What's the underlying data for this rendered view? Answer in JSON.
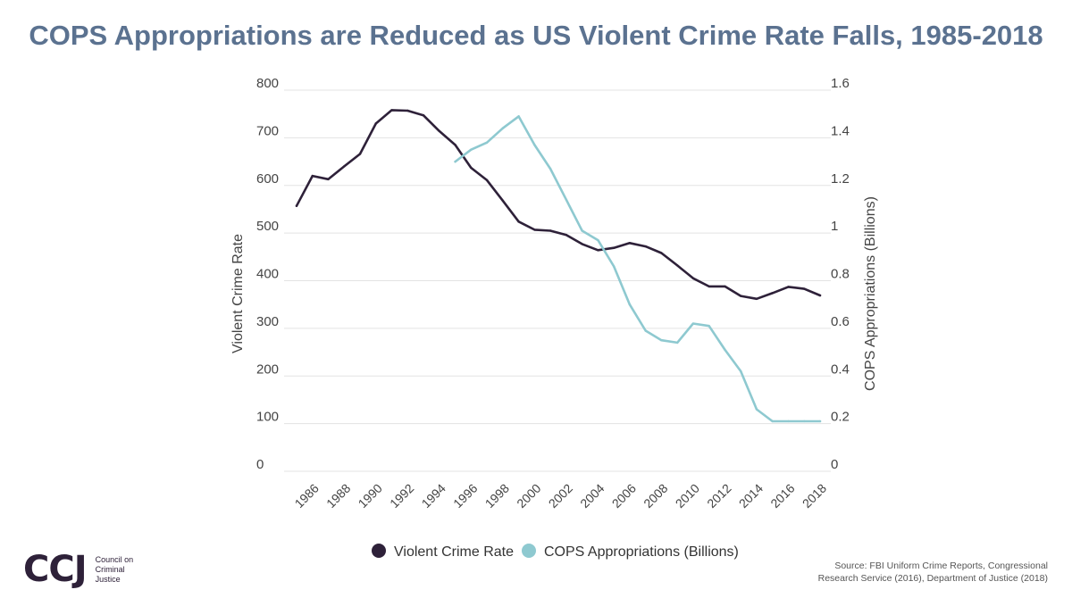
{
  "title": "COPS Appropriations are Reduced as US Violent Crime Rate Falls, 1985-2018",
  "colors": {
    "title": "#5b7290",
    "violent_crime": "#2e2139",
    "cops": "#8ec9d0",
    "grid": "#e3e3e3",
    "axis_text": "#444444"
  },
  "chart_data": {
    "type": "line",
    "x": [
      1985,
      1986,
      1987,
      1988,
      1989,
      1990,
      1991,
      1992,
      1993,
      1994,
      1995,
      1996,
      1997,
      1998,
      1999,
      2000,
      2001,
      2002,
      2003,
      2004,
      2005,
      2006,
      2007,
      2008,
      2009,
      2010,
      2011,
      2012,
      2013,
      2014,
      2015,
      2016,
      2017,
      2018
    ],
    "xticks": [
      "1986",
      "1988",
      "1990",
      "1992",
      "1994",
      "1996",
      "1998",
      "2000",
      "2002",
      "2004",
      "2006",
      "2008",
      "2010",
      "2012",
      "2014",
      "2016",
      "2018"
    ],
    "series": [
      {
        "name": "Violent Crime Rate",
        "axis": "left",
        "color": "#2e2139",
        "values": [
          557,
          620,
          613,
          640,
          666,
          730,
          758,
          757,
          747,
          714,
          685,
          637,
          611,
          568,
          524,
          507,
          505,
          496,
          477,
          464,
          469,
          479,
          472,
          458,
          432,
          405,
          388,
          388,
          368,
          362,
          374,
          387,
          383,
          369
        ]
      },
      {
        "name": "COPS Appropriations (Billions)",
        "axis": "right",
        "color": "#8ec9d0",
        "values": [
          null,
          null,
          null,
          null,
          null,
          null,
          null,
          null,
          null,
          null,
          1.3,
          1.35,
          1.38,
          1.44,
          1.49,
          1.37,
          1.27,
          1.14,
          1.01,
          0.97,
          0.86,
          0.7,
          0.59,
          0.55,
          0.54,
          0.62,
          0.61,
          0.51,
          0.42,
          0.26,
          0.21,
          0.21,
          0.21,
          0.21
        ]
      }
    ],
    "ylabel": "Violent Crime Rate",
    "y2label": "COPS Appropriations (Billions)",
    "ylim": [
      0,
      800
    ],
    "y2lim": [
      0,
      1.6
    ],
    "yticks": [
      "0",
      "100",
      "200",
      "300",
      "400",
      "500",
      "600",
      "700",
      "800"
    ],
    "y2ticks": [
      "0",
      "0.2",
      "0.4",
      "0.6",
      "0.8",
      "1",
      "1.2",
      "1.4",
      "1.6"
    ],
    "grid": true,
    "legend_position": "bottom-center"
  },
  "legend": {
    "items": [
      {
        "label": "Violent Crime Rate",
        "color": "#2e2139"
      },
      {
        "label": "COPS Appropriations (Billions)",
        "color": "#8ec9d0"
      }
    ]
  },
  "logo": {
    "mark": "CCJ",
    "line1": "Council on",
    "line2": "Criminal",
    "line3": "Justice"
  },
  "source": {
    "line1": "Source: FBI Uniform Crime Reports, Congressional",
    "line2": "Research Service (2016), Department of Justice (2018)"
  }
}
